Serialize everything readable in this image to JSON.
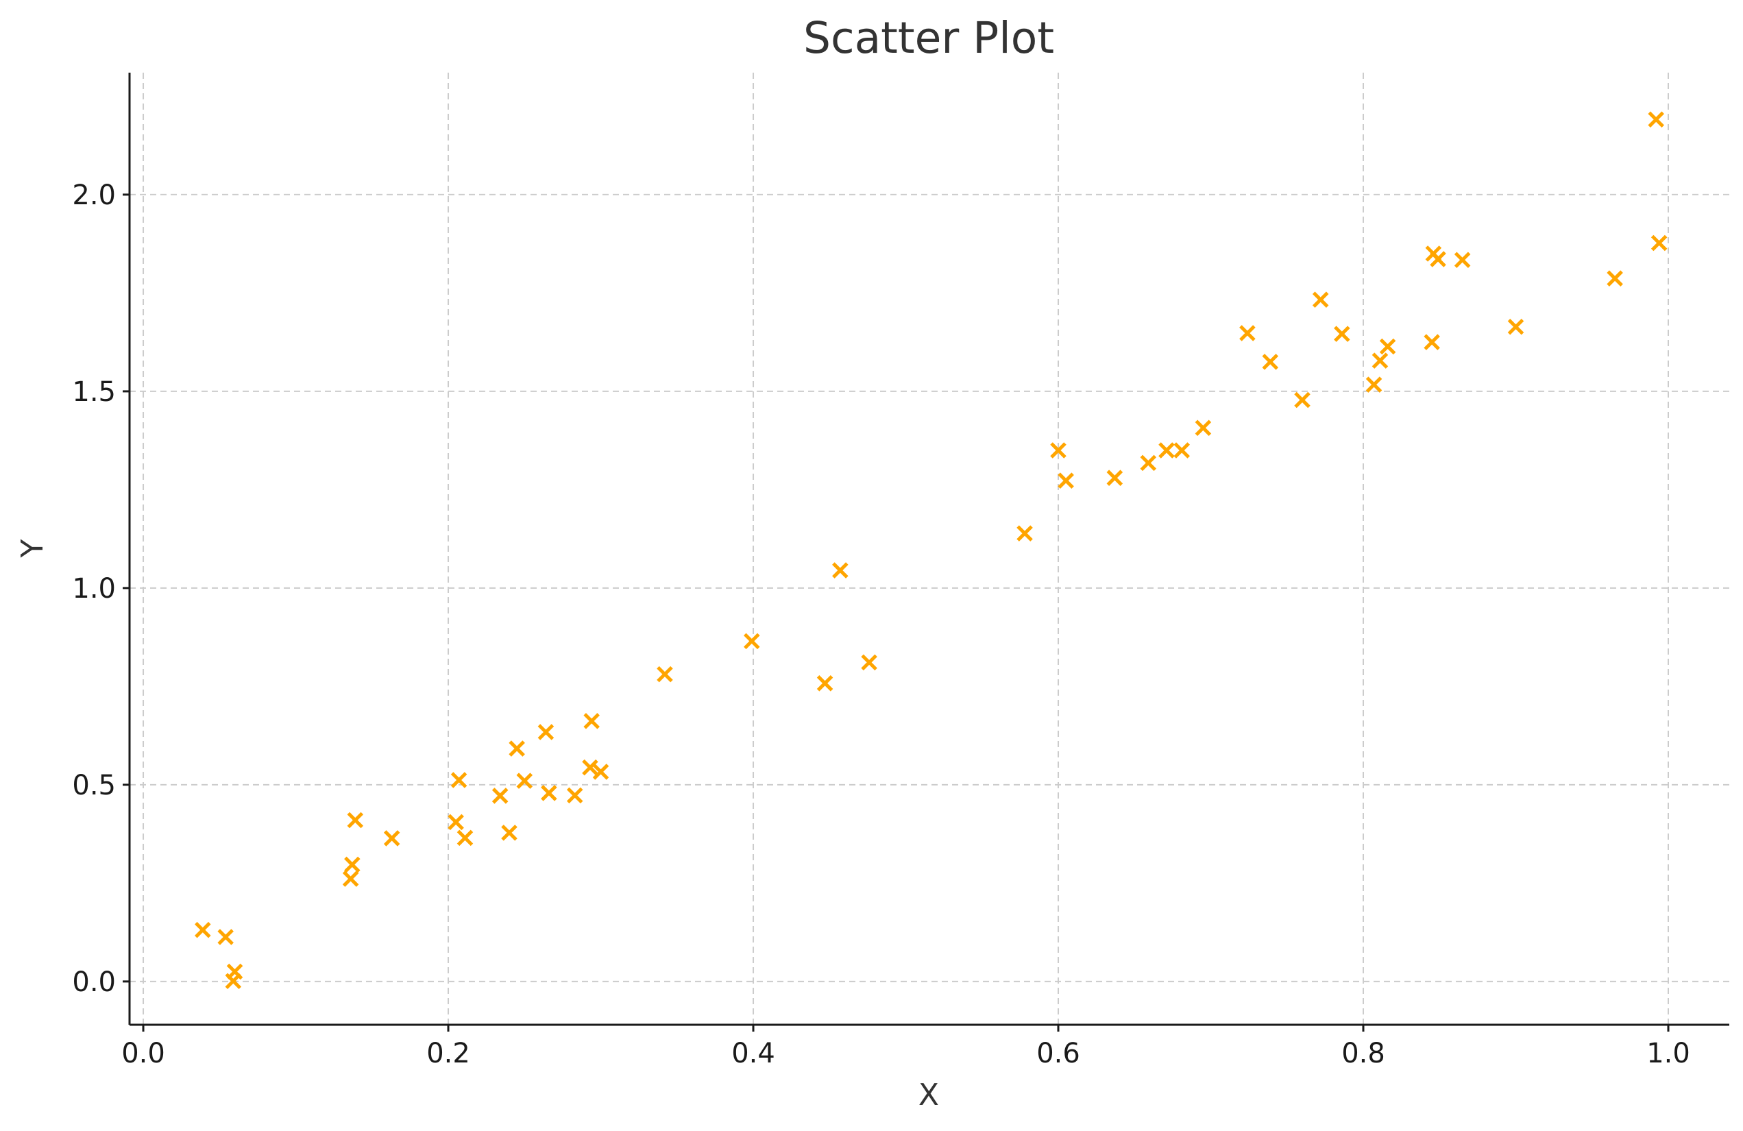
{
  "chart_data": {
    "type": "scatter",
    "title": "Scatter Plot",
    "xlabel": "X",
    "ylabel": "Y",
    "xlim": [
      -0.009,
      1.04
    ],
    "ylim": [
      -0.11,
      2.31
    ],
    "xticks": [
      0.0,
      0.2,
      0.4,
      0.6,
      0.8,
      1.0
    ],
    "xtick_labels": [
      "0.0",
      "0.2",
      "0.4",
      "0.6",
      "0.8",
      "1.0"
    ],
    "yticks": [
      0.0,
      0.5,
      1.0,
      1.5,
      2.0
    ],
    "ytick_labels": [
      "0.0",
      "0.5",
      "1.0",
      "1.5",
      "2.0"
    ],
    "grid": true,
    "marker": "x",
    "color": "#FFA500",
    "series": [
      {
        "points": [
          [
            0.039,
            0.131
          ],
          [
            0.054,
            0.113
          ],
          [
            0.06,
            0.025
          ],
          [
            0.059,
            0.001
          ],
          [
            0.136,
            0.261
          ],
          [
            0.137,
            0.297
          ],
          [
            0.139,
            0.41
          ],
          [
            0.163,
            0.364
          ],
          [
            0.205,
            0.405
          ],
          [
            0.207,
            0.512
          ],
          [
            0.211,
            0.365
          ],
          [
            0.234,
            0.472
          ],
          [
            0.24,
            0.378
          ],
          [
            0.245,
            0.592
          ],
          [
            0.25,
            0.51
          ],
          [
            0.264,
            0.634
          ],
          [
            0.266,
            0.479
          ],
          [
            0.283,
            0.473
          ],
          [
            0.293,
            0.544
          ],
          [
            0.294,
            0.662
          ],
          [
            0.3,
            0.533
          ],
          [
            0.342,
            0.781
          ],
          [
            0.399,
            0.865
          ],
          [
            0.447,
            0.758
          ],
          [
            0.457,
            1.045
          ],
          [
            0.476,
            0.811
          ],
          [
            0.578,
            1.139
          ],
          [
            0.6,
            1.35
          ],
          [
            0.605,
            1.273
          ],
          [
            0.637,
            1.28
          ],
          [
            0.659,
            1.318
          ],
          [
            0.671,
            1.35
          ],
          [
            0.681,
            1.35
          ],
          [
            0.695,
            1.407
          ],
          [
            0.724,
            1.648
          ],
          [
            0.739,
            1.575
          ],
          [
            0.76,
            1.478
          ],
          [
            0.772,
            1.733
          ],
          [
            0.786,
            1.646
          ],
          [
            0.807,
            1.517
          ],
          [
            0.811,
            1.578
          ],
          [
            0.816,
            1.614
          ],
          [
            0.845,
            1.625
          ],
          [
            0.846,
            1.85
          ],
          [
            0.849,
            1.836
          ],
          [
            0.865,
            1.834
          ],
          [
            0.9,
            1.664
          ],
          [
            0.965,
            1.787
          ],
          [
            0.992,
            2.191
          ],
          [
            0.994,
            1.877
          ]
        ]
      }
    ]
  }
}
